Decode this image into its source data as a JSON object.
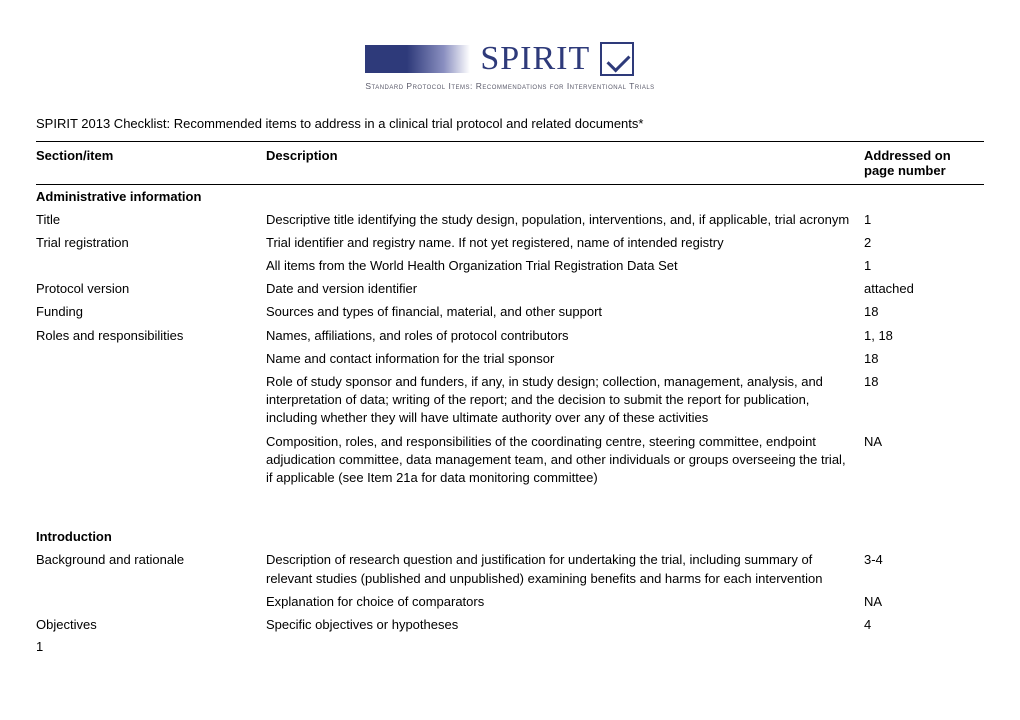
{
  "logo": {
    "main": "SPIRIT",
    "sub": "Standard Protocol Items: Recommendations for Interventional Trials"
  },
  "title": "SPIRIT 2013 Checklist: Recommended items to address in a clinical trial protocol and related documents*",
  "columns": {
    "section": "Section/item",
    "description": "Description",
    "page": "Addressed on page number"
  },
  "sections": [
    {
      "heading": "Administrative information",
      "rows": [
        {
          "item": "Title",
          "desc": "Descriptive title identifying the study design, population, interventions, and, if applicable, trial acronym",
          "page": "1"
        },
        {
          "item": "Trial registration",
          "desc": "Trial identifier and registry name. If not yet registered, name of intended registry",
          "page": "2"
        },
        {
          "item": "",
          "desc": "All items from the World Health Organization Trial Registration Data Set",
          "page": "1"
        },
        {
          "item": "Protocol version",
          "desc": "Date and version identifier",
          "page": "attached"
        },
        {
          "item": "Funding",
          "desc": "Sources and types of financial, material, and other support",
          "page": "18"
        },
        {
          "item": "Roles and responsibilities",
          "desc": "Names, affiliations, and roles of protocol contributors",
          "page": "1, 18"
        },
        {
          "item": "",
          "desc": "Name and contact information for the trial sponsor",
          "page": "18"
        },
        {
          "item": "",
          "desc": "Role of study sponsor and funders, if any, in study design; collection, management, analysis, and interpretation of data; writing of the report; and the decision to submit the report for publication, including whether they will have ultimate authority over any of these activities",
          "page": "18"
        },
        {
          "item": "",
          "desc": "Composition, roles, and responsibilities of the coordinating centre, steering committee, endpoint adjudication committee, data management team, and other individuals or groups overseeing the trial, if applicable (see Item 21a for data monitoring committee)",
          "page": "NA"
        }
      ]
    },
    {
      "heading": "Introduction",
      "rows": [
        {
          "item": "Background and rationale",
          "desc": "Description of research question and justification for undertaking the trial, including summary of relevant studies (published and unpublished) examining benefits and harms for each intervention",
          "page": "3-4"
        },
        {
          "item": "",
          "desc": "Explanation for choice of comparators",
          "page": "NA"
        },
        {
          "item": "Objectives",
          "desc": "Specific objectives or hypotheses",
          "page": "4"
        }
      ]
    }
  ],
  "pagenum": "1"
}
